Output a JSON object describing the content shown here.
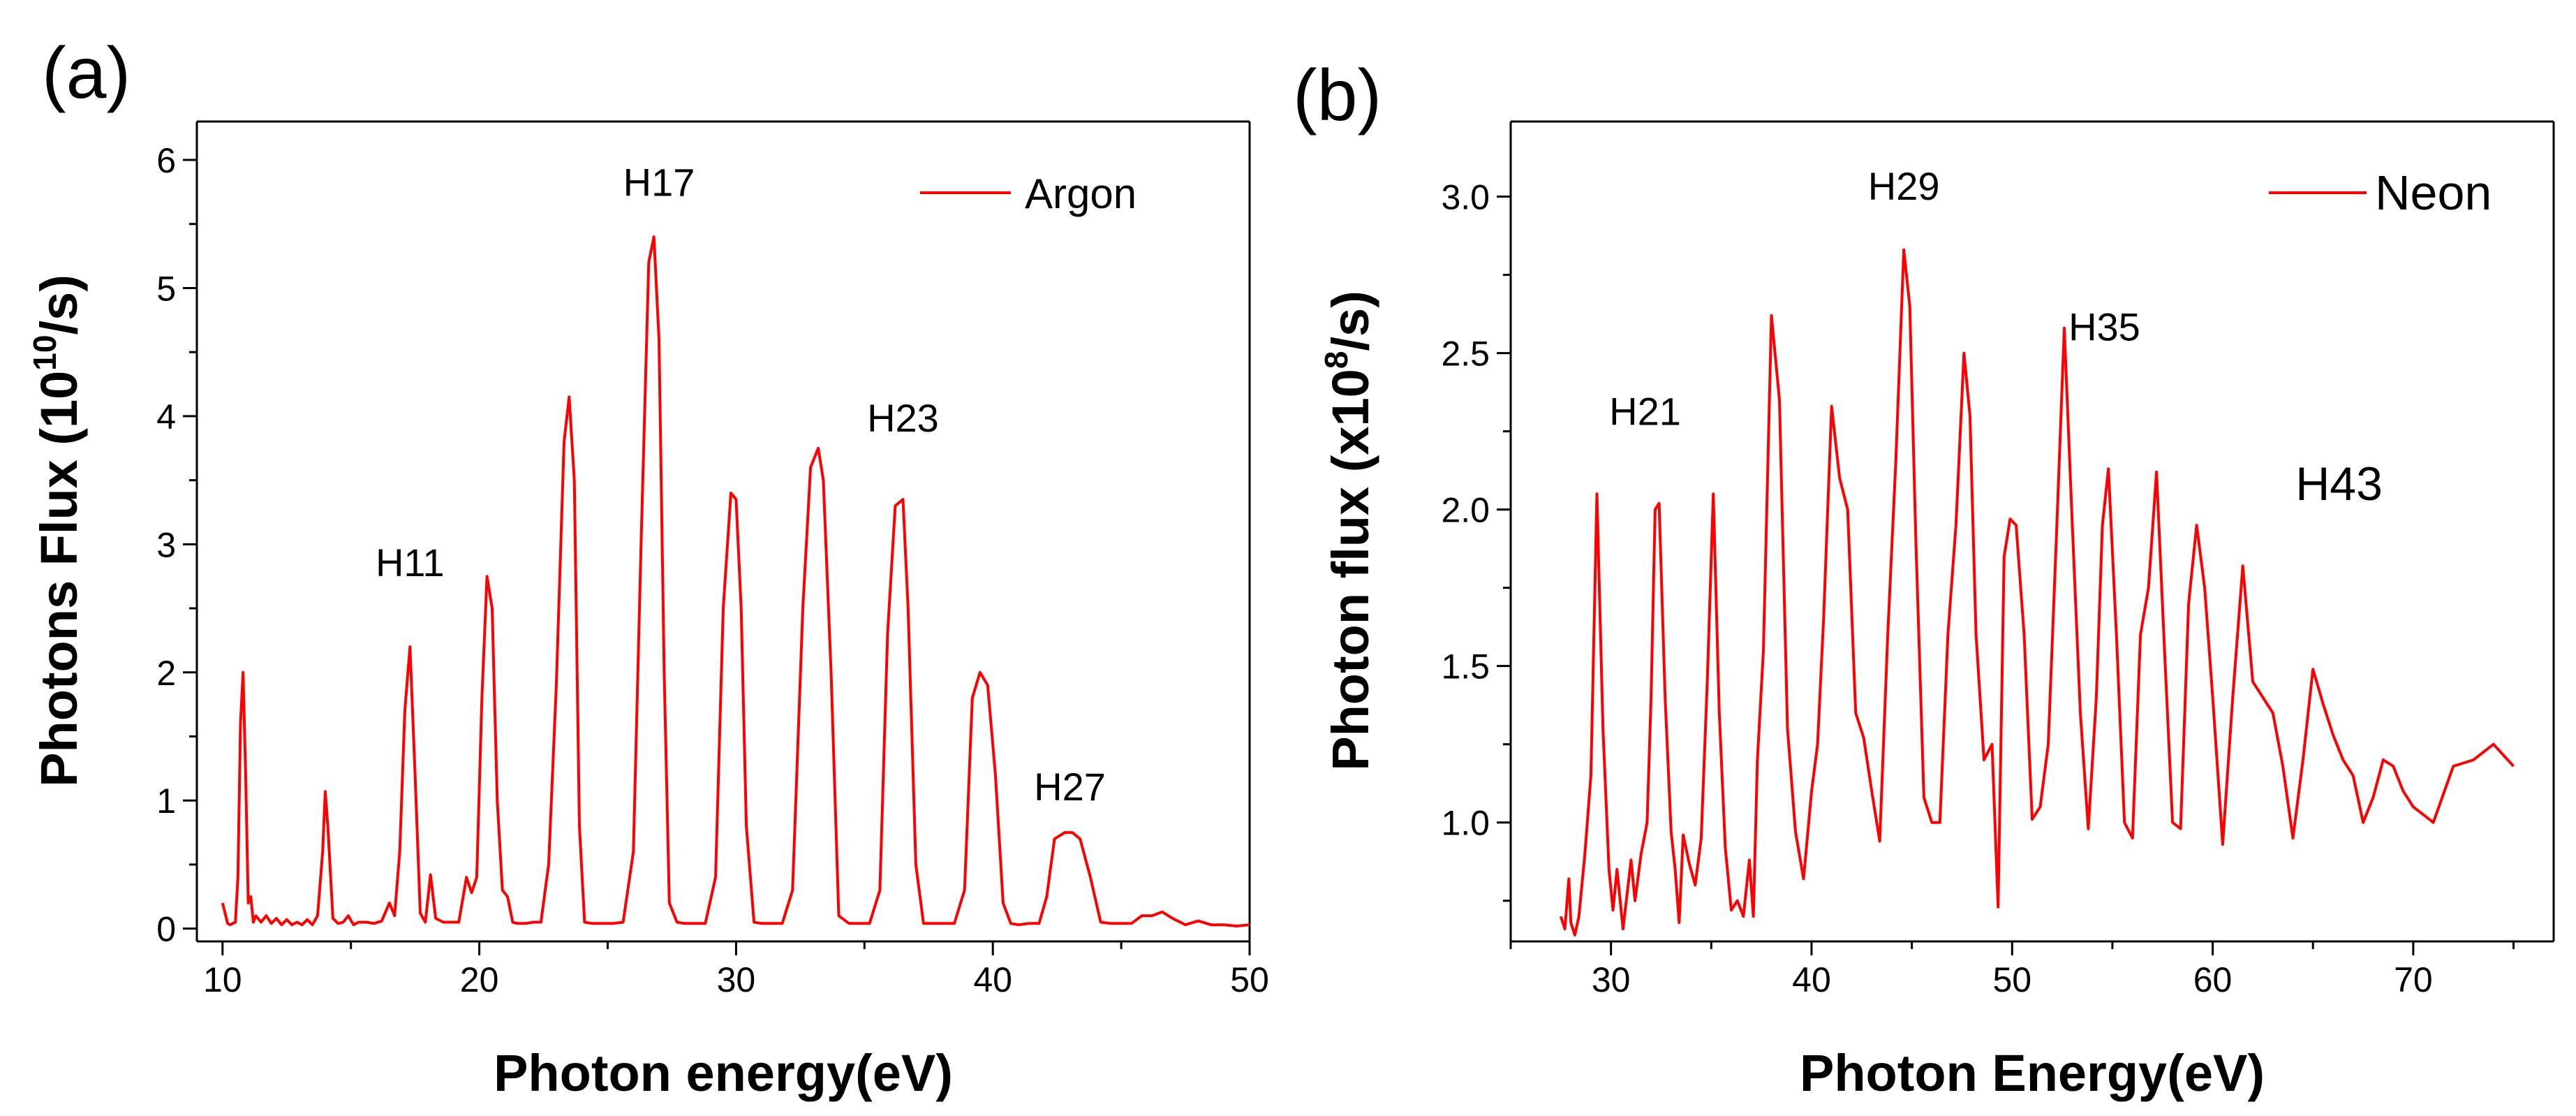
{
  "colors": {
    "series": "#ff0000",
    "axis": "#000000"
  },
  "chart_data": [
    {
      "panel_label": "(a)",
      "type": "line",
      "title": "",
      "xlabel": "Photon energy(eV)",
      "ylabel_main": "Photons Flux (10",
      "ylabel_sup": "10",
      "ylabel_end": "/s)",
      "xlim": [
        9,
        50
      ],
      "ylim": [
        -0.1,
        6.3
      ],
      "xticks": [
        10,
        20,
        30,
        40,
        50
      ],
      "yticks": [
        0,
        1,
        2,
        3,
        4,
        5,
        6
      ],
      "xtick_labels": [
        "10",
        "20",
        "30",
        "40",
        "50"
      ],
      "ytick_labels": [
        "0",
        "1",
        "2",
        "3",
        "4",
        "5",
        "6"
      ],
      "xminor": [
        15,
        25,
        35,
        45
      ],
      "yminor": [
        0.5,
        1.5,
        2.5,
        3.5,
        4.5,
        5.5
      ],
      "legend": {
        "label": "Argon",
        "position": "top-right"
      },
      "annotations": [
        {
          "text": "H11",
          "x": 17.3,
          "y": 2.75
        },
        {
          "text": "H17",
          "x": 27.0,
          "y": 5.72
        },
        {
          "text": "H23",
          "x": 36.5,
          "y": 3.88
        },
        {
          "text": "H27",
          "x": 43.0,
          "y": 1.0
        }
      ],
      "series": [
        {
          "name": "Argon",
          "x": [
            10.0,
            10.2,
            10.3,
            10.5,
            10.6,
            10.7,
            10.8,
            10.9,
            11.0,
            11.1,
            11.2,
            11.3,
            11.5,
            11.7,
            11.9,
            12.1,
            12.3,
            12.5,
            12.7,
            12.9,
            13.1,
            13.3,
            13.5,
            13.7,
            13.9,
            14.0,
            14.1,
            14.3,
            14.5,
            14.7,
            14.9,
            15.1,
            15.3,
            15.6,
            15.9,
            16.2,
            16.5,
            16.7,
            16.9,
            17.1,
            17.3,
            17.5,
            17.7,
            17.9,
            18.1,
            18.3,
            18.6,
            18.9,
            19.2,
            19.5,
            19.7,
            19.9,
            20.1,
            20.3,
            20.5,
            20.7,
            20.9,
            21.1,
            21.3,
            21.5,
            21.8,
            22.1,
            22.4,
            22.7,
            23.0,
            23.3,
            23.5,
            23.7,
            23.9,
            24.1,
            24.4,
            24.8,
            25.2,
            25.6,
            26.0,
            26.3,
            26.6,
            26.8,
            27.0,
            27.2,
            27.4,
            27.7,
            28.0,
            28.4,
            28.8,
            29.2,
            29.5,
            29.8,
            30.0,
            30.2,
            30.4,
            30.7,
            31.0,
            31.4,
            31.8,
            32.2,
            32.6,
            32.9,
            33.2,
            33.4,
            33.7,
            34.0,
            34.4,
            34.8,
            35.2,
            35.6,
            35.9,
            36.2,
            36.5,
            36.7,
            37.0,
            37.3,
            37.7,
            38.1,
            38.5,
            38.9,
            39.2,
            39.5,
            39.8,
            40.1,
            40.4,
            40.7,
            41.0,
            41.4,
            41.8,
            42.1,
            42.4,
            42.8,
            43.1,
            43.4,
            43.8,
            44.2,
            44.6,
            45.0,
            45.4,
            45.8,
            46.2,
            46.6,
            47.0,
            47.5,
            48.0,
            48.5,
            49.0,
            49.5,
            50.0
          ],
          "values": [
            0.2,
            0.04,
            0.03,
            0.05,
            0.4,
            1.6,
            2.0,
            1.2,
            0.2,
            0.25,
            0.05,
            0.1,
            0.05,
            0.1,
            0.04,
            0.08,
            0.03,
            0.07,
            0.03,
            0.05,
            0.03,
            0.07,
            0.03,
            0.1,
            0.6,
            1.07,
            0.8,
            0.08,
            0.04,
            0.05,
            0.1,
            0.03,
            0.05,
            0.05,
            0.04,
            0.06,
            0.2,
            0.1,
            0.6,
            1.7,
            2.2,
            1.2,
            0.12,
            0.05,
            0.42,
            0.08,
            0.05,
            0.05,
            0.05,
            0.4,
            0.28,
            0.4,
            1.8,
            2.75,
            2.5,
            1.0,
            0.3,
            0.25,
            0.05,
            0.04,
            0.04,
            0.05,
            0.05,
            0.5,
            1.9,
            3.8,
            4.15,
            3.5,
            0.8,
            0.05,
            0.04,
            0.04,
            0.04,
            0.05,
            0.6,
            3.0,
            5.2,
            5.4,
            4.6,
            2.0,
            0.2,
            0.05,
            0.04,
            0.04,
            0.04,
            0.4,
            2.5,
            3.4,
            3.35,
            2.5,
            0.8,
            0.05,
            0.04,
            0.04,
            0.04,
            0.3,
            2.5,
            3.6,
            3.75,
            3.5,
            2.0,
            0.1,
            0.04,
            0.04,
            0.04,
            0.3,
            2.3,
            3.3,
            3.35,
            2.5,
            0.5,
            0.04,
            0.04,
            0.04,
            0.04,
            0.3,
            1.8,
            2.0,
            1.9,
            1.2,
            0.2,
            0.04,
            0.03,
            0.04,
            0.04,
            0.25,
            0.7,
            0.75,
            0.75,
            0.7,
            0.4,
            0.05,
            0.04,
            0.04,
            0.04,
            0.1,
            0.1,
            0.13,
            0.08,
            0.03,
            0.06,
            0.03,
            0.03,
            0.02,
            0.03
          ]
        }
      ]
    },
    {
      "panel_label": "(b)",
      "type": "line",
      "title": "",
      "xlabel": "Photon Energy(eV)",
      "ylabel_main": "Photon flux (x10",
      "ylabel_sup": "8",
      "ylabel_end": "/s)",
      "xlim": [
        25,
        77
      ],
      "ylim": [
        0.62,
        3.24
      ],
      "xticks": [
        30,
        40,
        50,
        60,
        70
      ],
      "yticks": [
        1.0,
        1.5,
        2.0,
        2.5,
        3.0
      ],
      "xtick_labels": [
        "30",
        "40",
        "50",
        "60",
        "70"
      ],
      "ytick_labels": [
        "1.0",
        "1.5",
        "2.0",
        "2.5",
        "3.0"
      ],
      "xminor": [
        25,
        35,
        45,
        55,
        65,
        75
      ],
      "yminor": [
        0.75,
        1.25,
        1.75,
        2.25,
        2.75
      ],
      "legend": {
        "label": "Neon",
        "position": "top-right"
      },
      "annotations": [
        {
          "text": "H21",
          "x": 31.7,
          "y": 2.27,
          "large": false
        },
        {
          "text": "H29",
          "x": 44.6,
          "y": 2.99,
          "large": false
        },
        {
          "text": "H35",
          "x": 54.6,
          "y": 2.54,
          "large": false
        },
        {
          "text": "H43",
          "x": 66.3,
          "y": 2.03,
          "large": true
        }
      ],
      "series": [
        {
          "name": "Neon",
          "x": [
            27.5,
            27.7,
            27.9,
            28.0,
            28.2,
            28.4,
            28.7,
            29.0,
            29.3,
            29.6,
            29.9,
            30.1,
            30.3,
            30.6,
            31.0,
            31.2,
            31.5,
            31.8,
            32.0,
            32.2,
            32.4,
            32.7,
            33.0,
            33.2,
            33.4,
            33.6,
            33.9,
            34.2,
            34.5,
            34.8,
            35.1,
            35.4,
            35.7,
            36.0,
            36.3,
            36.6,
            36.9,
            37.1,
            37.3,
            37.6,
            38.0,
            38.4,
            38.8,
            39.2,
            39.6,
            40.0,
            40.3,
            40.6,
            41.0,
            41.4,
            41.8,
            42.2,
            42.6,
            43.0,
            43.4,
            43.8,
            44.2,
            44.6,
            44.9,
            45.2,
            45.6,
            46.0,
            46.4,
            46.8,
            47.2,
            47.6,
            47.9,
            48.2,
            48.6,
            49.0,
            49.3,
            49.6,
            49.9,
            50.2,
            50.6,
            51.0,
            51.4,
            51.8,
            52.2,
            52.6,
            53.0,
            53.4,
            53.8,
            54.2,
            54.5,
            54.8,
            55.2,
            55.6,
            56.0,
            56.4,
            56.8,
            57.2,
            57.6,
            58.0,
            58.4,
            58.8,
            59.2,
            59.6,
            60.0,
            60.5,
            61.0,
            61.5,
            62.0,
            62.5,
            63.0,
            63.5,
            64.0,
            64.5,
            65.0,
            65.5,
            66.0,
            66.5,
            67.0,
            67.5,
            68.0,
            68.5,
            69.0,
            69.5,
            70.0,
            71.0,
            72.0,
            73.0,
            74.0,
            75.0
          ],
          "values": [
            0.7,
            0.66,
            0.82,
            0.68,
            0.64,
            0.7,
            0.9,
            1.15,
            2.05,
            1.3,
            0.85,
            0.72,
            0.85,
            0.66,
            0.88,
            0.75,
            0.9,
            1.0,
            1.4,
            2.0,
            2.02,
            1.4,
            0.97,
            0.85,
            0.68,
            0.96,
            0.87,
            0.8,
            0.95,
            1.45,
            2.05,
            1.35,
            0.92,
            0.72,
            0.75,
            0.7,
            0.88,
            0.7,
            1.2,
            1.55,
            2.62,
            2.35,
            1.3,
            0.97,
            0.82,
            1.1,
            1.25,
            1.65,
            2.33,
            2.1,
            2.0,
            1.35,
            1.27,
            1.1,
            0.94,
            1.6,
            2.15,
            2.83,
            2.65,
            1.9,
            1.08,
            1.0,
            1.0,
            1.6,
            1.95,
            2.5,
            2.3,
            1.6,
            1.2,
            1.25,
            0.73,
            1.85,
            1.97,
            1.95,
            1.6,
            1.01,
            1.05,
            1.25,
            1.9,
            2.58,
            1.95,
            1.35,
            0.98,
            1.4,
            1.95,
            2.13,
            1.6,
            1.0,
            0.95,
            1.6,
            1.75,
            2.12,
            1.55,
            1.0,
            0.98,
            1.7,
            1.95,
            1.75,
            1.4,
            0.93,
            1.4,
            1.82,
            1.45,
            1.4,
            1.35,
            1.18,
            0.95,
            1.2,
            1.49,
            1.38,
            1.28,
            1.2,
            1.15,
            1.0,
            1.08,
            1.2,
            1.18,
            1.1,
            1.05,
            1.0,
            1.18,
            1.2,
            1.25,
            1.18
          ]
        }
      ]
    }
  ]
}
